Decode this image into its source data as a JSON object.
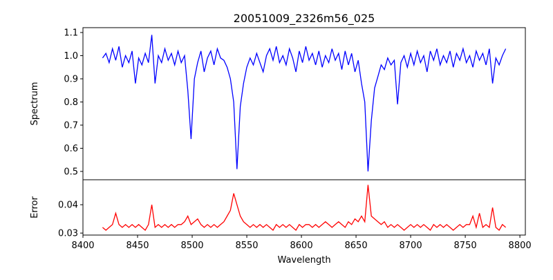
{
  "chart_data": [
    {
      "type": "line",
      "title": "20051009_2326m56_025",
      "xlabel": "",
      "ylabel": "Spectrum",
      "xlim": [
        8400,
        8805
      ],
      "ylim": [
        0.464,
        1.121
      ],
      "yticks": [
        0.5,
        0.6,
        0.7,
        0.8,
        0.9,
        1.0,
        1.1
      ],
      "ytick_labels": [
        "0.5",
        "0.6",
        "0.7",
        "0.8",
        "0.9",
        "1.0",
        "1.1"
      ],
      "color": "#0000ff",
      "x_start": 8418,
      "x_step": 3,
      "values": [
        0.99,
        1.01,
        0.97,
        1.03,
        0.98,
        1.04,
        0.95,
        1.0,
        0.97,
        1.02,
        0.88,
        0.99,
        0.96,
        1.01,
        0.97,
        1.09,
        0.88,
        1.0,
        0.97,
        1.03,
        0.98,
        1.01,
        0.96,
        1.02,
        0.97,
        1.0,
        0.85,
        0.64,
        0.9,
        0.97,
        1.02,
        0.93,
        0.99,
        1.02,
        0.96,
        1.03,
        0.99,
        0.98,
        0.95,
        0.9,
        0.8,
        0.51,
        0.78,
        0.88,
        0.95,
        0.99,
        0.96,
        1.01,
        0.97,
        0.93,
        1.0,
        1.03,
        0.98,
        1.04,
        0.97,
        1.0,
        0.96,
        1.03,
        0.99,
        0.93,
        1.02,
        0.97,
        1.04,
        0.98,
        1.01,
        0.96,
        1.02,
        0.95,
        1.0,
        0.97,
        1.03,
        0.98,
        1.01,
        0.94,
        1.02,
        0.96,
        1.01,
        0.93,
        0.98,
        0.88,
        0.8,
        0.5,
        0.72,
        0.86,
        0.91,
        0.96,
        0.94,
        0.99,
        0.96,
        0.98,
        0.79,
        0.97,
        1.0,
        0.95,
        1.01,
        0.96,
        1.02,
        0.97,
        1.0,
        0.93,
        1.02,
        0.98,
        1.03,
        0.96,
        1.0,
        0.97,
        1.02,
        0.95,
        1.01,
        0.98,
        1.03,
        0.97,
        1.0,
        0.95,
        1.02,
        0.98,
        1.01,
        0.96,
        1.03,
        0.88,
        0.99,
        0.96,
        1.0,
        1.03
      ]
    },
    {
      "type": "line",
      "title": "",
      "xlabel": "Wavelength",
      "ylabel": "Error",
      "xlim": [
        8400,
        8805
      ],
      "ylim": [
        0.0293,
        0.0488
      ],
      "yticks": [
        0.03,
        0.04
      ],
      "ytick_labels": [
        "0.03",
        "0.04"
      ],
      "xticks": [
        8400,
        8450,
        8500,
        8550,
        8600,
        8650,
        8700,
        8750,
        8800
      ],
      "xtick_labels": [
        "8400",
        "8450",
        "8500",
        "8550",
        "8600",
        "8650",
        "8700",
        "8750",
        "8800"
      ],
      "color": "#ff0000",
      "x_start": 8418,
      "x_step": 3,
      "values": [
        0.032,
        0.031,
        0.032,
        0.033,
        0.037,
        0.033,
        0.032,
        0.033,
        0.032,
        0.033,
        0.032,
        0.033,
        0.032,
        0.031,
        0.033,
        0.04,
        0.032,
        0.033,
        0.032,
        0.033,
        0.032,
        0.033,
        0.032,
        0.033,
        0.033,
        0.034,
        0.036,
        0.033,
        0.034,
        0.035,
        0.033,
        0.032,
        0.033,
        0.032,
        0.033,
        0.032,
        0.033,
        0.034,
        0.036,
        0.038,
        0.044,
        0.04,
        0.036,
        0.034,
        0.033,
        0.032,
        0.033,
        0.032,
        0.033,
        0.032,
        0.033,
        0.032,
        0.031,
        0.033,
        0.032,
        0.033,
        0.032,
        0.033,
        0.032,
        0.031,
        0.033,
        0.032,
        0.033,
        0.033,
        0.032,
        0.033,
        0.032,
        0.033,
        0.034,
        0.033,
        0.032,
        0.033,
        0.034,
        0.033,
        0.032,
        0.034,
        0.033,
        0.035,
        0.034,
        0.036,
        0.034,
        0.047,
        0.036,
        0.035,
        0.034,
        0.033,
        0.034,
        0.032,
        0.033,
        0.032,
        0.033,
        0.032,
        0.031,
        0.032,
        0.033,
        0.032,
        0.033,
        0.032,
        0.033,
        0.032,
        0.031,
        0.033,
        0.032,
        0.033,
        0.032,
        0.033,
        0.032,
        0.031,
        0.032,
        0.033,
        0.032,
        0.033,
        0.033,
        0.036,
        0.032,
        0.037,
        0.032,
        0.033,
        0.032,
        0.039,
        0.032,
        0.031,
        0.033,
        0.032
      ]
    }
  ]
}
